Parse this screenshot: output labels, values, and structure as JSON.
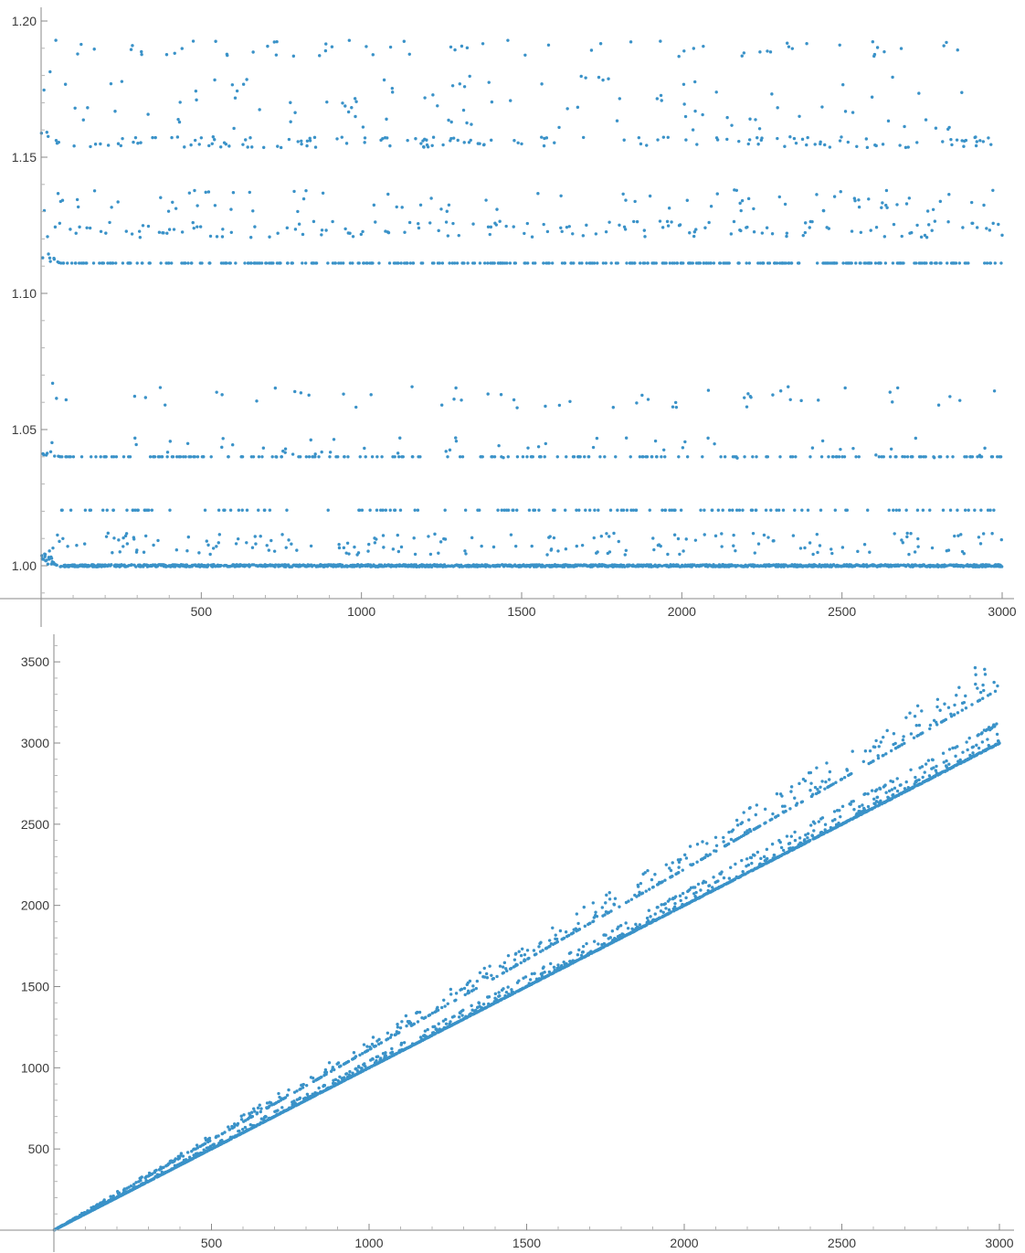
{
  "chart_data": [
    {
      "type": "scatter",
      "title": "",
      "xlabel": "",
      "ylabel": "",
      "xlim": [
        0,
        3000
      ],
      "ylim": [
        0.99,
        1.2
      ],
      "x_ticks": [
        500,
        1000,
        1500,
        2000,
        2500,
        3000
      ],
      "y_ticks": [
        1.0,
        1.05,
        1.1,
        1.15,
        1.2
      ],
      "y_tick_labels": [
        "1.00",
        "1.05",
        "1.10",
        "1.15",
        "1.20"
      ],
      "point_color": "#3a92c8",
      "grid": false,
      "legend": "none",
      "x_start": 1,
      "x_end": 3000,
      "series": [
        {
          "level": 1.0,
          "share": 0.48,
          "spread": 0.0004
        },
        {
          "level": 1.008,
          "share": 0.06,
          "spread": 0.004
        },
        {
          "level": 1.0204,
          "share": 0.05,
          "spread": 0.0
        },
        {
          "level": 1.04,
          "share": 0.07,
          "spread": 0.0
        },
        {
          "level": 1.0435,
          "share": 0.02,
          "spread": 0.004
        },
        {
          "level": 1.062,
          "share": 0.02,
          "spread": 0.004
        },
        {
          "level": 1.1111,
          "share": 0.12,
          "spread": 0.0
        },
        {
          "level": 1.1235,
          "share": 0.05,
          "spread": 0.003
        },
        {
          "level": 1.134,
          "share": 0.03,
          "spread": 0.004
        },
        {
          "level": 1.1555,
          "share": 0.05,
          "spread": 0.002
        },
        {
          "level": 1.17,
          "share": 0.03,
          "spread": 0.01
        },
        {
          "level": 1.19,
          "share": 0.01,
          "spread": 0.003
        }
      ]
    },
    {
      "type": "scatter",
      "title": "",
      "xlabel": "",
      "ylabel": "",
      "xlim": [
        0,
        3000
      ],
      "ylim": [
        0,
        3600
      ],
      "x_ticks": [
        500,
        1000,
        1500,
        2000,
        2500,
        3000
      ],
      "y_ticks": [
        500,
        1000,
        1500,
        2000,
        2500,
        3000,
        3500
      ],
      "y_tick_labels": [
        "500",
        "1000",
        "1500",
        "2000",
        "2500",
        "3000",
        "3500"
      ],
      "point_color": "#3a92c8",
      "grid": false,
      "legend": "none",
      "x_start": 1,
      "x_end": 3000,
      "series": [
        {
          "slope": 1.0,
          "share": 0.55,
          "spread": 0.001
        },
        {
          "slope": 1.008,
          "share": 0.08,
          "spread": 0.004
        },
        {
          "slope": 1.0204,
          "share": 0.05,
          "spread": 0.0
        },
        {
          "slope": 1.04,
          "share": 0.08,
          "spread": 0.004
        },
        {
          "slope": 1.1111,
          "share": 0.13,
          "spread": 0.0
        },
        {
          "slope": 1.13,
          "share": 0.07,
          "spread": 0.02
        },
        {
          "slope": 1.165,
          "share": 0.04,
          "spread": 0.02
        }
      ]
    }
  ]
}
